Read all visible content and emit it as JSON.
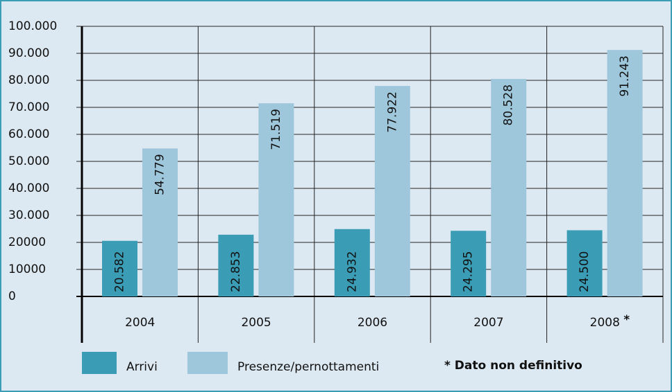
{
  "chart_data": {
    "type": "bar",
    "categories": [
      "2004",
      "2005",
      "2006",
      "2007",
      "2008"
    ],
    "category_note": "*",
    "series": [
      {
        "name": "Arrivi",
        "color": "#3a9cb5",
        "values": [
          20582,
          22853,
          24932,
          24295,
          24500
        ],
        "value_labels": [
          "20.582",
          "22.853",
          "24.932",
          "24.295",
          "24.500"
        ]
      },
      {
        "name": "Presenze/pernottamenti",
        "color": "#9fc7db",
        "values": [
          54779,
          71519,
          77922,
          80528,
          91243
        ],
        "value_labels": [
          "54.779",
          "71.519",
          "77.922",
          "80.528",
          "91.243"
        ]
      }
    ],
    "footnote": "* Dato non definitivo",
    "ylim": [
      0,
      100000
    ],
    "yticks": [
      0,
      {
        "value": 10000,
        "label": "10000"
      },
      {
        "value": 20000,
        "label": "20000"
      },
      {
        "value": 30000,
        "label": "30.000"
      },
      {
        "value": 40000,
        "label": "40.000"
      },
      {
        "value": 50000,
        "label": "50.000"
      },
      {
        "value": 60000,
        "label": "60.000"
      },
      {
        "value": 70000,
        "label": "70.000"
      },
      {
        "value": 80000,
        "label": "80.000"
      },
      {
        "value": 90000,
        "label": "90.000"
      },
      {
        "value": 100000,
        "label": "100.000"
      }
    ],
    "grid": true
  }
}
